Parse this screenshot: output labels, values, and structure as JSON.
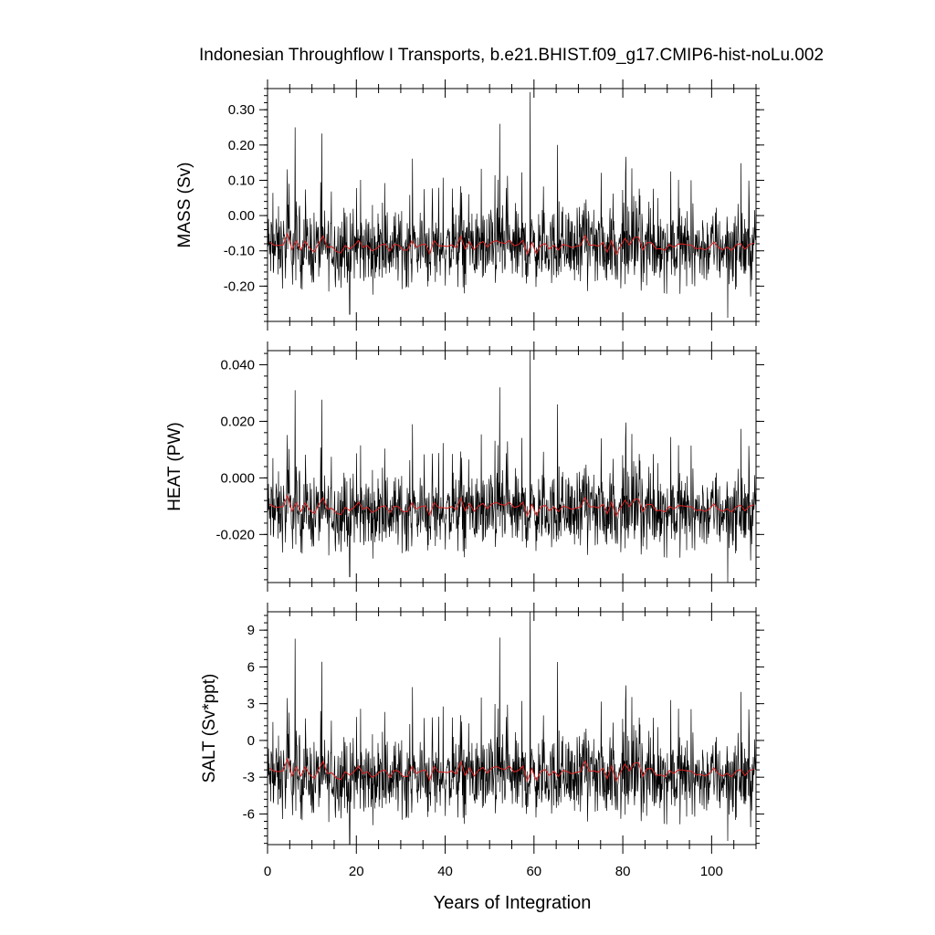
{
  "chart_data": {
    "type": "line",
    "title": "Indonesian Throughflow I Transports, b.e21.BHIST.f09_g17.CMIP6-hist-noLu.002",
    "xlabel": "Years of Integration",
    "xlim": [
      0,
      110
    ],
    "x_ticks": [
      0,
      20,
      40,
      60,
      80,
      100
    ],
    "colors": {
      "raw": "#000000",
      "annual": "#dd2020"
    },
    "grid": false,
    "panels": [
      {
        "ylabel": "MASS (Sv)",
        "ylim": [
          -0.3,
          0.36
        ],
        "y_ticks": [
          -0.2,
          -0.1,
          0.0,
          0.1,
          0.2,
          0.3
        ],
        "y_tick_labels": [
          "-0.20",
          "-0.10",
          "0.00",
          "0.10",
          "0.20",
          "0.30"
        ],
        "series": [
          {
            "mean": -0.09,
            "variability": 0.065,
            "peaks": [
              [
                6.2,
                0.25
              ],
              [
                52.3,
                0.26
              ],
              [
                59.1,
                0.35
              ],
              [
                65.3,
                0.2
              ],
              [
                103.6,
                -0.29
              ],
              [
                18.5,
                -0.28
              ]
            ]
          },
          {
            "mean": -0.09,
            "variability": 0.018
          }
        ]
      },
      {
        "ylabel": "HEAT (PW)",
        "ylim": [
          -0.037,
          0.045
        ],
        "y_ticks": [
          -0.02,
          0.0,
          0.02,
          0.04
        ],
        "y_tick_labels": [
          "-0.020",
          "0.000",
          "0.020",
          "0.040"
        ],
        "series": [
          {
            "mean": -0.012,
            "variability": 0.008,
            "peaks": [
              [
                6.2,
                0.031
              ],
              [
                52.3,
                0.032
              ],
              [
                59.1,
                0.045
              ],
              [
                65.3,
                0.026
              ],
              [
                103.6,
                -0.037
              ],
              [
                18.5,
                -0.035
              ]
            ]
          },
          {
            "mean": -0.011,
            "variability": 0.0022
          }
        ]
      },
      {
        "ylabel": "SALT (Sv*ppt)",
        "ylim": [
          -8.5,
          10.5
        ],
        "y_ticks": [
          -6,
          -3,
          0,
          3,
          6,
          9
        ],
        "y_tick_labels": [
          "-6",
          "-3",
          "0",
          "3",
          "6",
          "9"
        ],
        "series": [
          {
            "mean": -3.0,
            "variability": 1.9,
            "peaks": [
              [
                6.2,
                8.3
              ],
              [
                52.3,
                8.4
              ],
              [
                59.1,
                10.5
              ],
              [
                65.3,
                6.4
              ],
              [
                103.6,
                -8.2
              ],
              [
                18.5,
                -8.5
              ]
            ]
          },
          {
            "mean": -2.7,
            "variability": 0.55
          }
        ]
      }
    ]
  }
}
